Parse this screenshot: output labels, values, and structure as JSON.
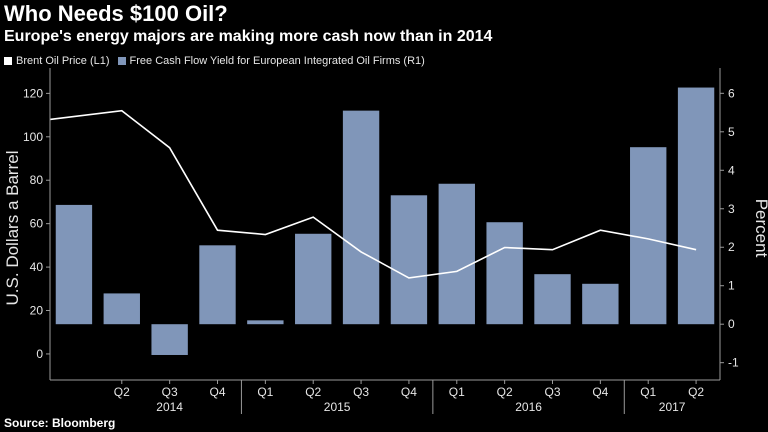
{
  "title": "Who Needs $100 Oil?",
  "subtitle": "Europe's energy majors are making more cash now than in 2014",
  "source": "Source: Bloomberg",
  "colors": {
    "bar": "#8096b9",
    "line": "#ffffff",
    "background": "#000000"
  },
  "chart_data": {
    "type": "bar+line",
    "categories": [
      "Q1",
      "Q2",
      "Q3",
      "Q4",
      "Q1",
      "Q2",
      "Q3",
      "Q4",
      "Q1",
      "Q2",
      "Q3",
      "Q4",
      "Q1",
      "Q2"
    ],
    "x_tick_labels": [
      "Q2",
      "Q3",
      "Q4",
      "Q1",
      "Q2",
      "Q3",
      "Q4",
      "Q1",
      "Q2",
      "Q3",
      "Q4",
      "Q1",
      "Q2"
    ],
    "year_labels": [
      {
        "label": "2014",
        "center_index": 2
      },
      {
        "label": "2015",
        "center_index": 5.5
      },
      {
        "label": "2016",
        "center_index": 9.5
      },
      {
        "label": "2017",
        "center_index": 12.5
      }
    ],
    "series": [
      {
        "name": "Brent Oil Price (L1)",
        "type": "line",
        "axis": "left",
        "values": [
          108,
          112,
          95,
          57,
          55,
          63,
          47,
          35,
          38,
          49,
          48,
          57,
          53,
          48
        ]
      },
      {
        "name": "Free Cash Flow Yield for European Integrated Oil Firms (R1)",
        "type": "bar",
        "axis": "right",
        "values": [
          3.1,
          0.8,
          -0.8,
          2.05,
          0.1,
          2.35,
          5.55,
          3.35,
          3.65,
          2.65,
          1.3,
          1.05,
          4.6,
          6.15
        ]
      }
    ],
    "left_axis": {
      "label": "U.S. Dollars a Barrel",
      "ticks": [
        0,
        20,
        40,
        60,
        80,
        100,
        120
      ],
      "range": [
        -12,
        128
      ]
    },
    "right_axis": {
      "label": "Percent",
      "ticks": [
        -1,
        0,
        1,
        2,
        3,
        4,
        5,
        6
      ],
      "range": [
        -1.45,
        6.45
      ]
    },
    "grid": false
  }
}
